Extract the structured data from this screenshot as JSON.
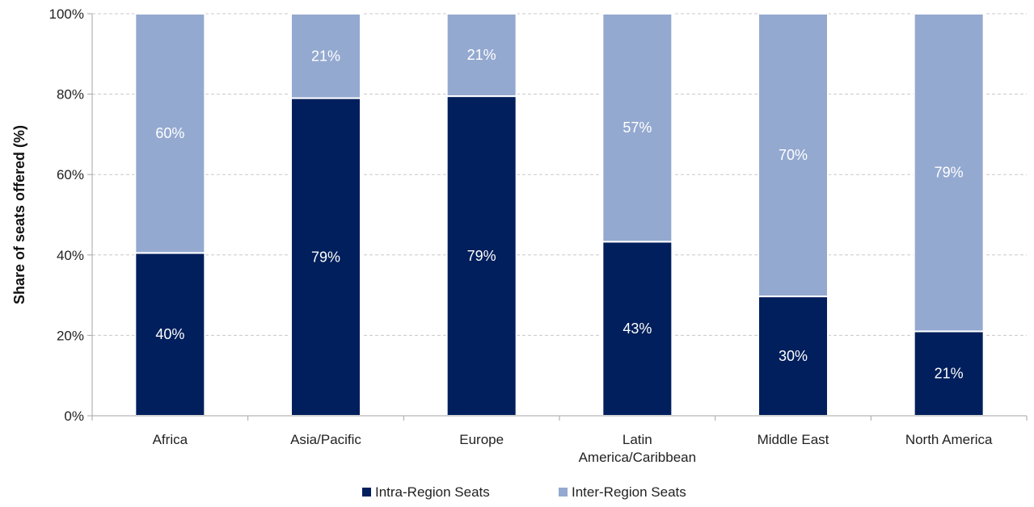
{
  "chart_data": {
    "type": "bar",
    "stacked": true,
    "percent_stacked": true,
    "categories": [
      [
        "Africa"
      ],
      [
        "Asia/Pacific"
      ],
      [
        "Europe"
      ],
      [
        "Latin",
        "America/Caribbean"
      ],
      [
        "Middle East"
      ],
      [
        "North America"
      ]
    ],
    "series": [
      {
        "name": "Intra-Region Seats",
        "values": [
          40.5,
          79,
          79.5,
          43.3,
          29.7,
          21
        ],
        "labels": [
          "40%",
          "79%",
          "79%",
          "43%",
          "30%",
          "21%"
        ],
        "color": "#001f5c"
      },
      {
        "name": "Inter-Region Seats",
        "values": [
          59.5,
          21,
          20.5,
          56.7,
          70.3,
          79
        ],
        "labels": [
          "60%",
          "21%",
          "21%",
          "57%",
          "70%",
          "79%"
        ],
        "color": "#94a9d0"
      }
    ],
    "ylabel": "Share of seats offered (%)",
    "ylim": [
      0,
      100
    ],
    "yticks": [
      {
        "value": 0,
        "label": "0%"
      },
      {
        "value": 20,
        "label": "20%"
      },
      {
        "value": 40,
        "label": "40%"
      },
      {
        "value": 60,
        "label": "60%"
      },
      {
        "value": 80,
        "label": "80%"
      },
      {
        "value": 100,
        "label": "100%"
      }
    ],
    "grid": "horizontal-dashed",
    "legend_position": "bottom-center",
    "colors": {
      "axis": "#a6a6a6",
      "grid": "#c8c8c8"
    }
  }
}
